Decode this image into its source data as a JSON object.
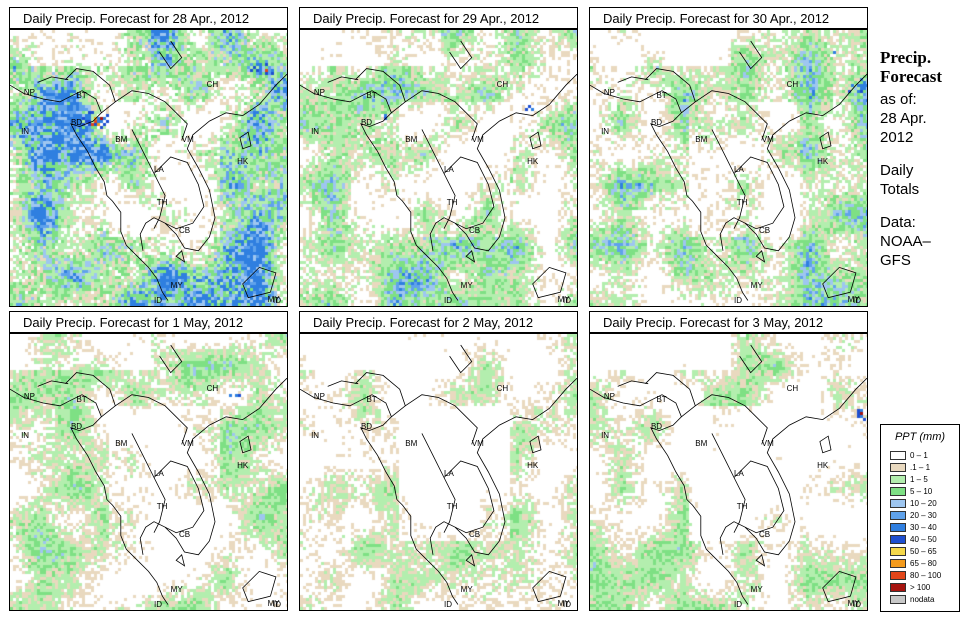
{
  "panels": [
    {
      "title": "Daily Precip. Forecast for  28 Apr., 2012",
      "seed": 11,
      "wetness": 1.25,
      "hot": [
        [
          0.3,
          0.32,
          2.2
        ],
        [
          0.9,
          0.14,
          1.6
        ],
        [
          0.7,
          0.55,
          0.9
        ]
      ]
    },
    {
      "title": "Daily Precip. Forecast for  29 Apr., 2012",
      "seed": 23,
      "wetness": 1.0,
      "hot": [
        [
          0.8,
          0.27,
          1.4
        ],
        [
          0.3,
          0.3,
          0.9
        ]
      ]
    },
    {
      "title": "Daily Precip. Forecast for  30 Apr., 2012",
      "seed": 37,
      "wetness": 1.0,
      "hot": [
        [
          0.95,
          0.2,
          1.5
        ],
        [
          0.85,
          0.08,
          1.0
        ],
        [
          0.28,
          0.3,
          0.8
        ]
      ]
    },
    {
      "title": "Daily Precip. Forecast for  1 May, 2012",
      "seed": 41,
      "wetness": 0.85,
      "hot": [
        [
          0.8,
          0.22,
          1.0
        ],
        [
          0.25,
          0.3,
          0.7
        ]
      ]
    },
    {
      "title": "Daily Precip. Forecast for  2 May, 2012",
      "seed": 53,
      "wetness": 0.8,
      "hot": [
        [
          0.45,
          0.95,
          0.8
        ],
        [
          0.8,
          0.22,
          0.7
        ]
      ]
    },
    {
      "title": "Daily Precip. Forecast for  3 May, 2012",
      "seed": 67,
      "wetness": 0.8,
      "hot": [
        [
          0.97,
          0.28,
          1.3
        ],
        [
          0.4,
          0.85,
          0.8
        ]
      ]
    }
  ],
  "country_labels": [
    "NP",
    "BT",
    "IN",
    "BD",
    "BM",
    "CH",
    "VM",
    "LA",
    "HK",
    "TH",
    "CB",
    "MY",
    "ID",
    "MY",
    "ID"
  ],
  "side": {
    "title_line1": "Precip.",
    "title_line2": "Forecast",
    "asof_label": "as of:",
    "asof_date_line1": "28 Apr.",
    "asof_date_line2": "2012",
    "totals_line1": "Daily",
    "totals_line2": "Totals",
    "data_line1": "Data:",
    "data_line2": "NOAA–",
    "data_line3": "GFS"
  },
  "legend": {
    "title": "PPT (mm)",
    "entries": [
      {
        "label": "0 – 1",
        "color": "#ffffff"
      },
      {
        "label": ".1 – 1",
        "color": "#e9d9bf"
      },
      {
        "label": "1 – 5",
        "color": "#b3eeae"
      },
      {
        "label": "5 – 10",
        "color": "#7ee084"
      },
      {
        "label": "10 – 20",
        "color": "#9ec6f0"
      },
      {
        "label": "20 – 30",
        "color": "#5fa2eb"
      },
      {
        "label": "30 – 40",
        "color": "#2f7fe0"
      },
      {
        "label": "40 – 50",
        "color": "#1e4fd0"
      },
      {
        "label": "50 – 65",
        "color": "#f5d84a"
      },
      {
        "label": "65 – 80",
        "color": "#f39a1c"
      },
      {
        "label": "80 – 100",
        "color": "#e2461a"
      },
      {
        "label": "> 100",
        "color": "#a6140f"
      },
      {
        "label": "nodata",
        "color": "#c8c8c8"
      }
    ]
  }
}
